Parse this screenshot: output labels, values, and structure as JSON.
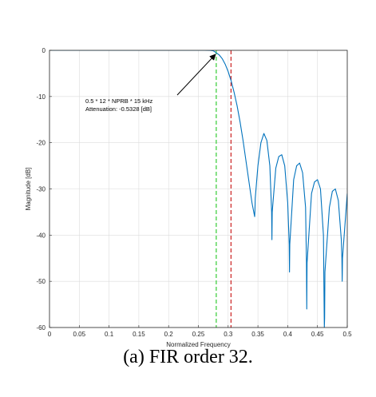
{
  "chart_data": {
    "type": "line",
    "xlabel": "Normalized Frequency",
    "ylabel": "Magnitude [dB]",
    "xlim": [
      0,
      0.5
    ],
    "ylim": [
      -60,
      0
    ],
    "xticks": [
      0,
      0.05,
      0.1,
      0.15,
      0.2,
      0.25,
      0.3,
      0.35,
      0.4,
      0.45,
      0.5
    ],
    "xtick_labels": [
      "0",
      "0.05",
      "0.1",
      "0.15",
      "0.2",
      "0.25",
      "0.3",
      "0.35",
      "0.4",
      "0.45",
      "0.5"
    ],
    "yticks": [
      0,
      -10,
      -20,
      -30,
      -40,
      -50,
      -60
    ],
    "ytick_labels": [
      "0",
      "-10",
      "-20",
      "-30",
      "-40",
      "-50",
      "-60"
    ],
    "grid": true,
    "series": [
      {
        "color": "#0072bd",
        "x": [
          0,
          0.26,
          0.27,
          0.275,
          0.28,
          0.285,
          0.29,
          0.295,
          0.3,
          0.305,
          0.31,
          0.315,
          0.32,
          0.325,
          0.33,
          0.335,
          0.34,
          0.3445,
          0.345,
          0.3455,
          0.35,
          0.355,
          0.36,
          0.365,
          0.37,
          0.373,
          0.3735,
          0.374,
          0.38,
          0.385,
          0.39,
          0.395,
          0.4,
          0.4025,
          0.403,
          0.4035,
          0.41,
          0.415,
          0.42,
          0.425,
          0.43,
          0.4315,
          0.432,
          0.4325,
          0.44,
          0.445,
          0.45,
          0.455,
          0.46,
          0.4615,
          0.462,
          0.4625,
          0.47,
          0.475,
          0.48,
          0.485,
          0.49,
          0.491,
          0.4915,
          0.492,
          0.5
        ],
        "y": [
          0,
          0,
          -0.02,
          -0.1,
          -0.5328,
          -1.0,
          -1.8,
          -3.0,
          -4.6,
          -6.6,
          -9.1,
          -12.0,
          -15.5,
          -19.5,
          -24.0,
          -28.5,
          -33.0,
          -36.0,
          -34.5,
          -32.0,
          -25.0,
          -20.0,
          -18.0,
          -19.5,
          -25.0,
          -35.0,
          -41.0,
          -35.0,
          -25.5,
          -23.0,
          -22.6,
          -25.0,
          -33.0,
          -42.0,
          -48.0,
          -42.0,
          -28.0,
          -25.0,
          -24.4,
          -26.5,
          -34.0,
          -46.0,
          -56.0,
          -46.0,
          -31.0,
          -28.5,
          -28.0,
          -30.0,
          -40.0,
          -60.0,
          -58.0,
          -48.0,
          -34.0,
          -30.5,
          -30.0,
          -32.5,
          -41.0,
          -45.0,
          -50.0,
          -45.0,
          -31.0
        ]
      }
    ],
    "vlines": [
      {
        "x": 0.28,
        "color": "#33cc33",
        "style": "dashed"
      },
      {
        "x": 0.3048,
        "color": "#cc2222",
        "style": "dashed"
      }
    ],
    "annotation": {
      "line1": "0.5 * 12 * NPRB * 15 kHz",
      "line2": "Attenuation: -0.5328 [dB]",
      "target": [
        0.28,
        -0.5328
      ]
    }
  },
  "caption": "(a)  FIR order 32."
}
